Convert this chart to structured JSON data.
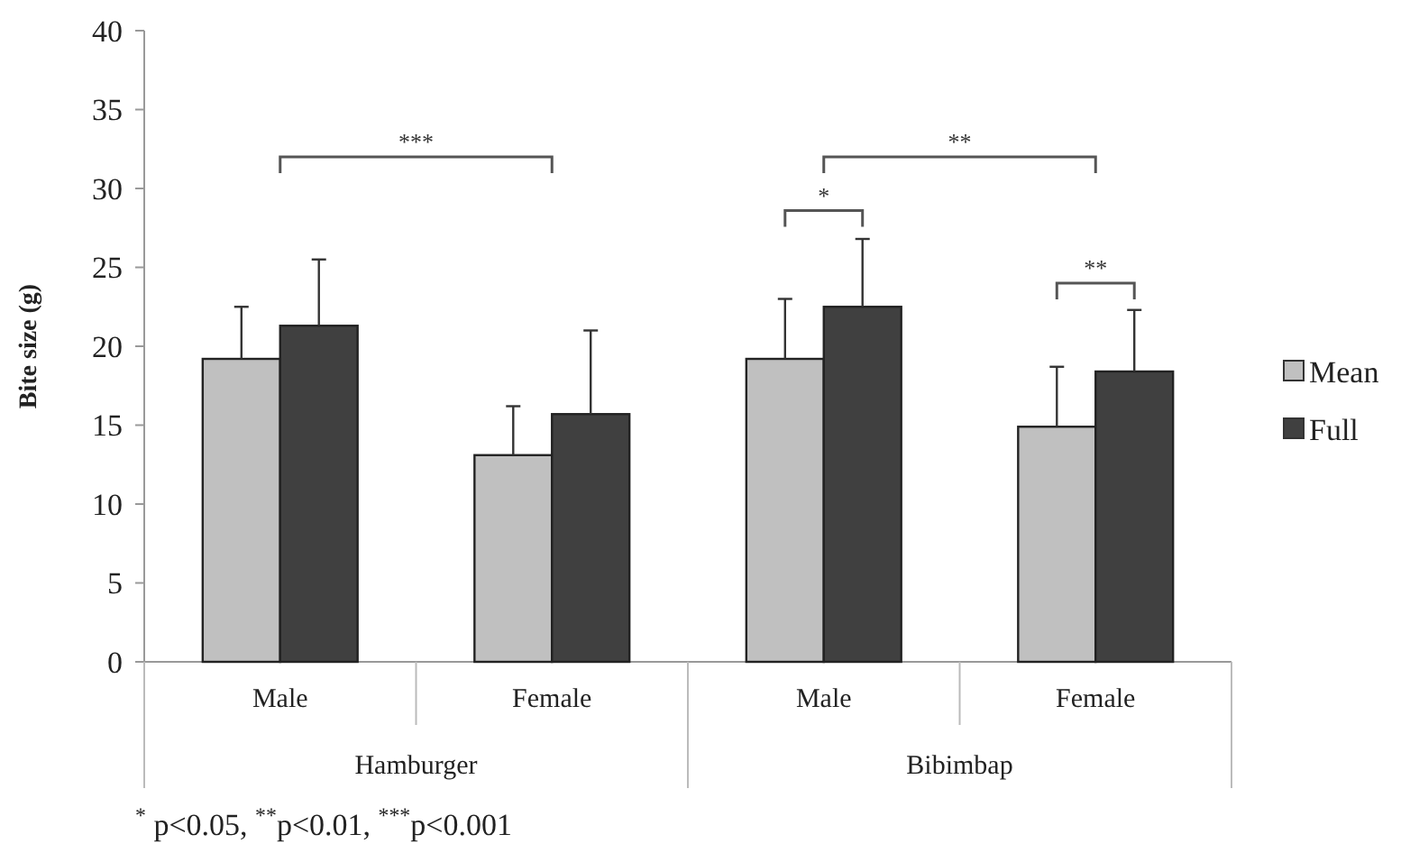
{
  "chart_data": {
    "type": "bar",
    "ylabel": "Bite size (g)",
    "categories": [
      "Male",
      "Female",
      "Male",
      "Female"
    ],
    "series": [
      {
        "name": "Mean",
        "color": "#c0c0c0",
        "values": [
          19.2,
          13.1,
          19.2,
          14.9
        ],
        "errors": [
          3.3,
          3.1,
          3.8,
          3.8
        ]
      },
      {
        "name": "Full",
        "color": "#404040",
        "values": [
          21.3,
          15.7,
          22.5,
          18.4
        ],
        "errors": [
          4.2,
          5.3,
          4.3,
          3.9
        ]
      }
    ],
    "ylim": [
      0,
      40
    ],
    "yticks": [
      0,
      5,
      10,
      15,
      20,
      25,
      30,
      35,
      40
    ],
    "grid": false,
    "legend": "right",
    "annotations": [
      "***",
      "**",
      "*",
      "**",
      "Hamburger",
      "Bibimbap",
      "$^{*}$ p<0.05, $^{**}$p<0.01, $^{***}$p<0.001"
    ]
  }
}
